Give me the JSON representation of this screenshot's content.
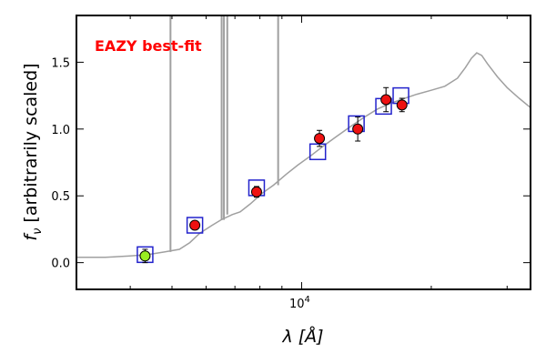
{
  "chart_data": {
    "type": "scatter",
    "title": "",
    "annotation": "EAZY best-fit",
    "annotation_color": "#ff0000",
    "xlabel": "λ [Å]",
    "ylabel": "f_ν [arbitrarily scaled]",
    "ylabel_symbol": "f",
    "ylabel_sub": "ν",
    "ylabel_text": "[arbitrarily scaled]",
    "x_scale": "log",
    "xlim": [
      3000,
      34000
    ],
    "ylim": [
      -0.2,
      1.85
    ],
    "x_major_ticks": [
      {
        "value": 10000,
        "base": "10",
        "exp": "4"
      }
    ],
    "y_ticks": [
      {
        "value": 0.0,
        "label": "0.0"
      },
      {
        "value": 0.5,
        "label": "0.5"
      },
      {
        "value": 1.0,
        "label": "1.0"
      },
      {
        "value": 1.5,
        "label": "1.5"
      }
    ],
    "grid": false,
    "colors": {
      "template": "#a0a0a0",
      "model_box": "#2222cc",
      "observed": "#ee1111",
      "highlight": "#99ee22",
      "errorbar": "#000000"
    },
    "template_curve": [
      [
        3000,
        0.04
      ],
      [
        3500,
        0.04
      ],
      [
        4000,
        0.05
      ],
      [
        4400,
        0.06
      ],
      [
        4800,
        0.08
      ],
      [
        5200,
        0.1
      ],
      [
        5500,
        0.15
      ],
      [
        5800,
        0.22
      ],
      [
        6200,
        0.28
      ],
      [
        6500,
        0.32
      ],
      [
        6900,
        0.36
      ],
      [
        7200,
        0.38
      ],
      [
        7600,
        0.44
      ],
      [
        8100,
        0.52
      ],
      [
        8600,
        0.58
      ],
      [
        9200,
        0.66
      ],
      [
        9800,
        0.73
      ],
      [
        10500,
        0.8
      ],
      [
        11200,
        0.87
      ],
      [
        12000,
        0.94
      ],
      [
        13000,
        1.02
      ],
      [
        14000,
        1.09
      ],
      [
        15000,
        1.15
      ],
      [
        16000,
        1.19
      ],
      [
        17000,
        1.22
      ],
      [
        18500,
        1.26
      ],
      [
        20000,
        1.29
      ],
      [
        21500,
        1.32
      ],
      [
        23000,
        1.38
      ],
      [
        24000,
        1.46
      ],
      [
        24800,
        1.53
      ],
      [
        25500,
        1.57
      ],
      [
        26200,
        1.55
      ],
      [
        27000,
        1.49
      ],
      [
        28500,
        1.39
      ],
      [
        30000,
        1.31
      ],
      [
        32000,
        1.23
      ],
      [
        34000,
        1.16
      ]
    ],
    "emission_lines": [
      {
        "x": 4960,
        "y": 1.85
      },
      {
        "x": 6520,
        "y": 1.85
      },
      {
        "x": 6600,
        "y": 1.85
      },
      {
        "x": 6720,
        "y": 1.85
      },
      {
        "x": 8820,
        "y": 1.85
      }
    ],
    "model_points": [
      {
        "x": 4330,
        "y": 0.06
      },
      {
        "x": 5650,
        "y": 0.28
      },
      {
        "x": 7860,
        "y": 0.56
      },
      {
        "x": 10900,
        "y": 0.83
      },
      {
        "x": 13400,
        "y": 1.04
      },
      {
        "x": 15500,
        "y": 1.17
      },
      {
        "x": 17000,
        "y": 1.25
      }
    ],
    "observed_points": [
      {
        "x": 4330,
        "y": 0.05,
        "err": 0.05,
        "highlight": true
      },
      {
        "x": 5650,
        "y": 0.28,
        "err": 0.02,
        "highlight": false
      },
      {
        "x": 7860,
        "y": 0.53,
        "err": 0.04,
        "highlight": false
      },
      {
        "x": 11000,
        "y": 0.93,
        "err": 0.06,
        "highlight": false
      },
      {
        "x": 13500,
        "y": 1.0,
        "err": 0.09,
        "highlight": false
      },
      {
        "x": 15700,
        "y": 1.22,
        "err": 0.09,
        "highlight": false
      },
      {
        "x": 17100,
        "y": 1.18,
        "err": 0.05,
        "highlight": false
      }
    ]
  }
}
